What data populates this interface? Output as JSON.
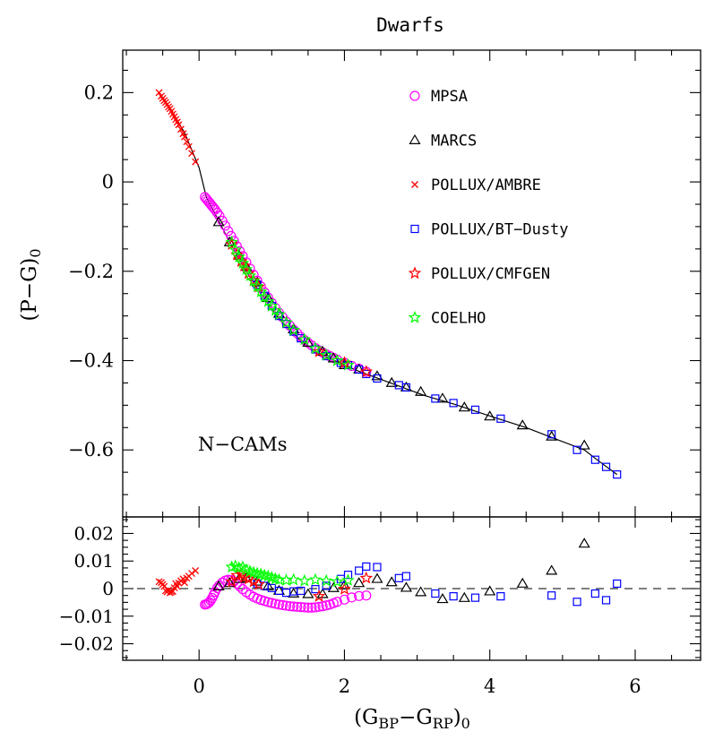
{
  "chart_data": {
    "type": "scatter",
    "title": "Dwarfs",
    "annotation": "N−CAMs",
    "xlabel": "(G_BP−G_RP)_0",
    "ylabel": "(P−G)_0",
    "residual_ylabel": "",
    "xlim": [
      -1.05,
      6.9
    ],
    "ylim": [
      -0.75,
      0.295
    ],
    "residual_ylim": [
      -0.026,
      0.026
    ],
    "xticks": [
      0,
      2,
      4,
      6
    ],
    "yticks": [
      0.2,
      0,
      -0.2,
      -0.4,
      -0.6
    ],
    "residual_yticks": [
      0.02,
      0.01,
      0,
      -0.01,
      -0.02
    ],
    "xtick_labels": [
      "0",
      "2",
      "4",
      "6"
    ],
    "ytick_labels": [
      "0.2",
      "0",
      "−0.2",
      "−0.4",
      "−0.6"
    ],
    "residual_ytick_labels": [
      "0.02",
      "0.01",
      "0",
      "−0.01",
      "−0.02"
    ],
    "legend_position": "top-right",
    "fit_curve": {
      "x": [
        -0.55,
        -0.4,
        -0.2,
        0.0,
        0.1,
        0.2,
        0.3,
        0.4,
        0.5,
        0.6,
        0.7,
        0.8,
        0.9,
        1.0,
        1.1,
        1.2,
        1.4,
        1.6,
        1.8,
        2.0,
        2.2,
        2.5,
        2.8,
        3.1,
        3.5,
        4.0,
        4.5,
        4.9,
        5.3,
        5.5,
        5.75
      ],
      "y": [
        0.2,
        0.165,
        0.11,
        0.032,
        -0.034,
        -0.065,
        -0.097,
        -0.128,
        -0.158,
        -0.186,
        -0.213,
        -0.238,
        -0.262,
        -0.284,
        -0.305,
        -0.324,
        -0.356,
        -0.379,
        -0.395,
        -0.41,
        -0.424,
        -0.442,
        -0.46,
        -0.478,
        -0.497,
        -0.524,
        -0.55,
        -0.575,
        -0.6,
        -0.625,
        -0.655
      ]
    },
    "series": [
      {
        "name": "MPSA",
        "color": "#ff00ff",
        "marker": "circle",
        "x": [
          0.08,
          0.1,
          0.12,
          0.14,
          0.16,
          0.18,
          0.2,
          0.22,
          0.25,
          0.28,
          0.32,
          0.36,
          0.4,
          0.44,
          0.48,
          0.52,
          0.56,
          0.6,
          0.65,
          0.7,
          0.75,
          0.8,
          0.85,
          0.9,
          0.95,
          1.0,
          1.05,
          1.1,
          1.15,
          1.2,
          1.25,
          1.3,
          1.35,
          1.4,
          1.45,
          1.5,
          1.55,
          1.6,
          1.65,
          1.7,
          1.75,
          1.8,
          1.85,
          1.9,
          2.0,
          2.1,
          2.2,
          2.3
        ],
        "y": [
          -0.034,
          -0.038,
          -0.042,
          -0.046,
          -0.05,
          -0.054,
          -0.058,
          -0.062,
          -0.069,
          -0.076,
          -0.087,
          -0.098,
          -0.11,
          -0.121,
          -0.132,
          -0.144,
          -0.155,
          -0.166,
          -0.18,
          -0.194,
          -0.208,
          -0.221,
          -0.234,
          -0.247,
          -0.259,
          -0.271,
          -0.282,
          -0.293,
          -0.303,
          -0.313,
          -0.322,
          -0.331,
          -0.339,
          -0.347,
          -0.354,
          -0.36,
          -0.366,
          -0.372,
          -0.377,
          -0.382,
          -0.386,
          -0.39,
          -0.394,
          -0.398,
          -0.405,
          -0.412,
          -0.418,
          -0.425
        ],
        "residual": [
          -0.0058,
          -0.0057,
          -0.0054,
          -0.005,
          -0.0043,
          -0.0034,
          -0.0024,
          -0.0012,
          0.0002,
          0.0012,
          0.0022,
          0.0029,
          0.0032,
          0.0031,
          0.0026,
          0.0018,
          0.0008,
          -0.0002,
          -0.0013,
          -0.0022,
          -0.003,
          -0.0036,
          -0.0041,
          -0.0045,
          -0.0049,
          -0.0052,
          -0.0055,
          -0.0058,
          -0.006,
          -0.0062,
          -0.0064,
          -0.0065,
          -0.0066,
          -0.0067,
          -0.0068,
          -0.0069,
          -0.0069,
          -0.0068,
          -0.0066,
          -0.0064,
          -0.0061,
          -0.0058,
          -0.0053,
          -0.0048,
          -0.004,
          -0.0032,
          -0.0027,
          -0.0025
        ]
      },
      {
        "name": "MARCS",
        "color": "#000000",
        "marker": "triangle",
        "x": [
          0.27,
          0.42,
          0.55,
          0.65,
          0.8,
          0.95,
          1.1,
          1.3,
          1.5,
          1.7,
          1.85,
          2.0,
          2.2,
          2.45,
          2.65,
          2.85,
          3.05,
          3.35,
          3.65,
          4.0,
          4.45,
          4.85,
          5.3
        ],
        "y": [
          -0.09,
          -0.135,
          -0.165,
          -0.19,
          -0.225,
          -0.26,
          -0.295,
          -0.33,
          -0.36,
          -0.38,
          -0.395,
          -0.41,
          -0.42,
          -0.435,
          -0.45,
          -0.46,
          -0.47,
          -0.485,
          -0.505,
          -0.525,
          -0.545,
          -0.57,
          -0.59
        ],
        "residual": [
          0.0008,
          0.002,
          0.0035,
          0.0038,
          0.0025,
          0.0008,
          -0.0008,
          -0.0018,
          -0.002,
          -0.002,
          0.0002,
          0.0012,
          0.002,
          0.0035,
          0.0023,
          0.0003,
          -0.0013,
          -0.0038,
          -0.0034,
          -0.001,
          0.0018,
          0.0065,
          0.0163
        ]
      },
      {
        "name": "POLLUX/AMBRE",
        "color": "#ff0000",
        "marker": "cross",
        "x": [
          -0.55,
          -0.52,
          -0.5,
          -0.48,
          -0.46,
          -0.44,
          -0.42,
          -0.4,
          -0.38,
          -0.36,
          -0.34,
          -0.32,
          -0.3,
          -0.28,
          -0.25,
          -0.22,
          -0.2,
          -0.17,
          -0.14,
          -0.1,
          -0.05
        ],
        "y": [
          0.2,
          0.192,
          0.187,
          0.182,
          0.178,
          0.173,
          0.168,
          0.164,
          0.158,
          0.152,
          0.146,
          0.14,
          0.134,
          0.128,
          0.118,
          0.108,
          0.101,
          0.09,
          0.079,
          0.064,
          0.045
        ],
        "residual": [
          0.0025,
          0.0022,
          0.0015,
          0.0008,
          -0.0008,
          -0.0012,
          -0.0005,
          -0.0015,
          -0.0012,
          -0.001,
          0.0003,
          0.0018,
          0.0008,
          0.002,
          0.0028,
          0.0035,
          0.0022,
          0.0038,
          0.0045,
          0.0055,
          0.0065
        ]
      },
      {
        "name": "POLLUX/BT−Dusty",
        "color": "#0000ff",
        "marker": "square",
        "x": [
          0.8,
          0.9,
          1.0,
          1.1,
          1.2,
          1.3,
          1.4,
          1.6,
          1.75,
          1.95,
          2.05,
          2.2,
          2.3,
          2.45,
          2.75,
          2.85,
          3.25,
          3.5,
          3.8,
          4.15,
          4.85,
          5.2,
          5.45,
          5.6,
          5.75
        ],
        "y": [
          -0.23,
          -0.255,
          -0.278,
          -0.3,
          -0.318,
          -0.335,
          -0.35,
          -0.375,
          -0.39,
          -0.405,
          -0.41,
          -0.42,
          -0.43,
          -0.44,
          -0.455,
          -0.46,
          -0.485,
          -0.495,
          -0.51,
          -0.53,
          -0.565,
          -0.6,
          -0.622,
          -0.638,
          -0.655
        ],
        "residual": [
          0.0018,
          0.001,
          0.0002,
          -0.0008,
          -0.0015,
          -0.001,
          -0.0008,
          -0.0002,
          0.001,
          0.0035,
          0.005,
          0.0065,
          0.008,
          0.0078,
          0.0038,
          0.0045,
          -0.0018,
          -0.0028,
          -0.0033,
          -0.0028,
          -0.0025,
          -0.0048,
          -0.0018,
          -0.0042,
          0.0018
        ]
      },
      {
        "name": "POLLUX/CMFGEN",
        "color": "#ff0000",
        "marker": "star",
        "x": [
          0.45,
          0.52,
          0.58,
          0.62,
          0.68,
          0.75,
          0.82,
          1.65,
          2.0,
          2.3
        ],
        "y": [
          -0.14,
          -0.163,
          -0.178,
          -0.188,
          -0.205,
          -0.22,
          -0.235,
          -0.38,
          -0.405,
          -0.425
        ],
        "residual": [
          0.0025,
          0.0048,
          0.0052,
          0.004,
          0.0035,
          0.0025,
          0.0015,
          -0.0028,
          -0.0002,
          0.0038
        ]
      },
      {
        "name": "COELHO",
        "color": "#00ff00",
        "marker": "star",
        "x": [
          0.45,
          0.5,
          0.55,
          0.6,
          0.65,
          0.7,
          0.75,
          0.8,
          0.85,
          0.9,
          0.95,
          1.0,
          1.05,
          1.1,
          1.2,
          1.3,
          1.45,
          1.6,
          1.75,
          1.9,
          2.05
        ],
        "y": [
          -0.135,
          -0.152,
          -0.168,
          -0.182,
          -0.196,
          -0.21,
          -0.222,
          -0.234,
          -0.246,
          -0.258,
          -0.268,
          -0.278,
          -0.288,
          -0.297,
          -0.315,
          -0.332,
          -0.353,
          -0.373,
          -0.388,
          -0.4,
          -0.41
        ],
        "residual": [
          0.0078,
          0.0082,
          0.0075,
          0.0078,
          0.0068,
          0.0062,
          0.0058,
          0.0055,
          0.0052,
          0.0048,
          0.0045,
          0.004,
          0.0035,
          0.0032,
          0.003,
          0.0032,
          0.0028,
          0.0032,
          0.0028,
          0.0025,
          0.003
        ]
      }
    ]
  }
}
